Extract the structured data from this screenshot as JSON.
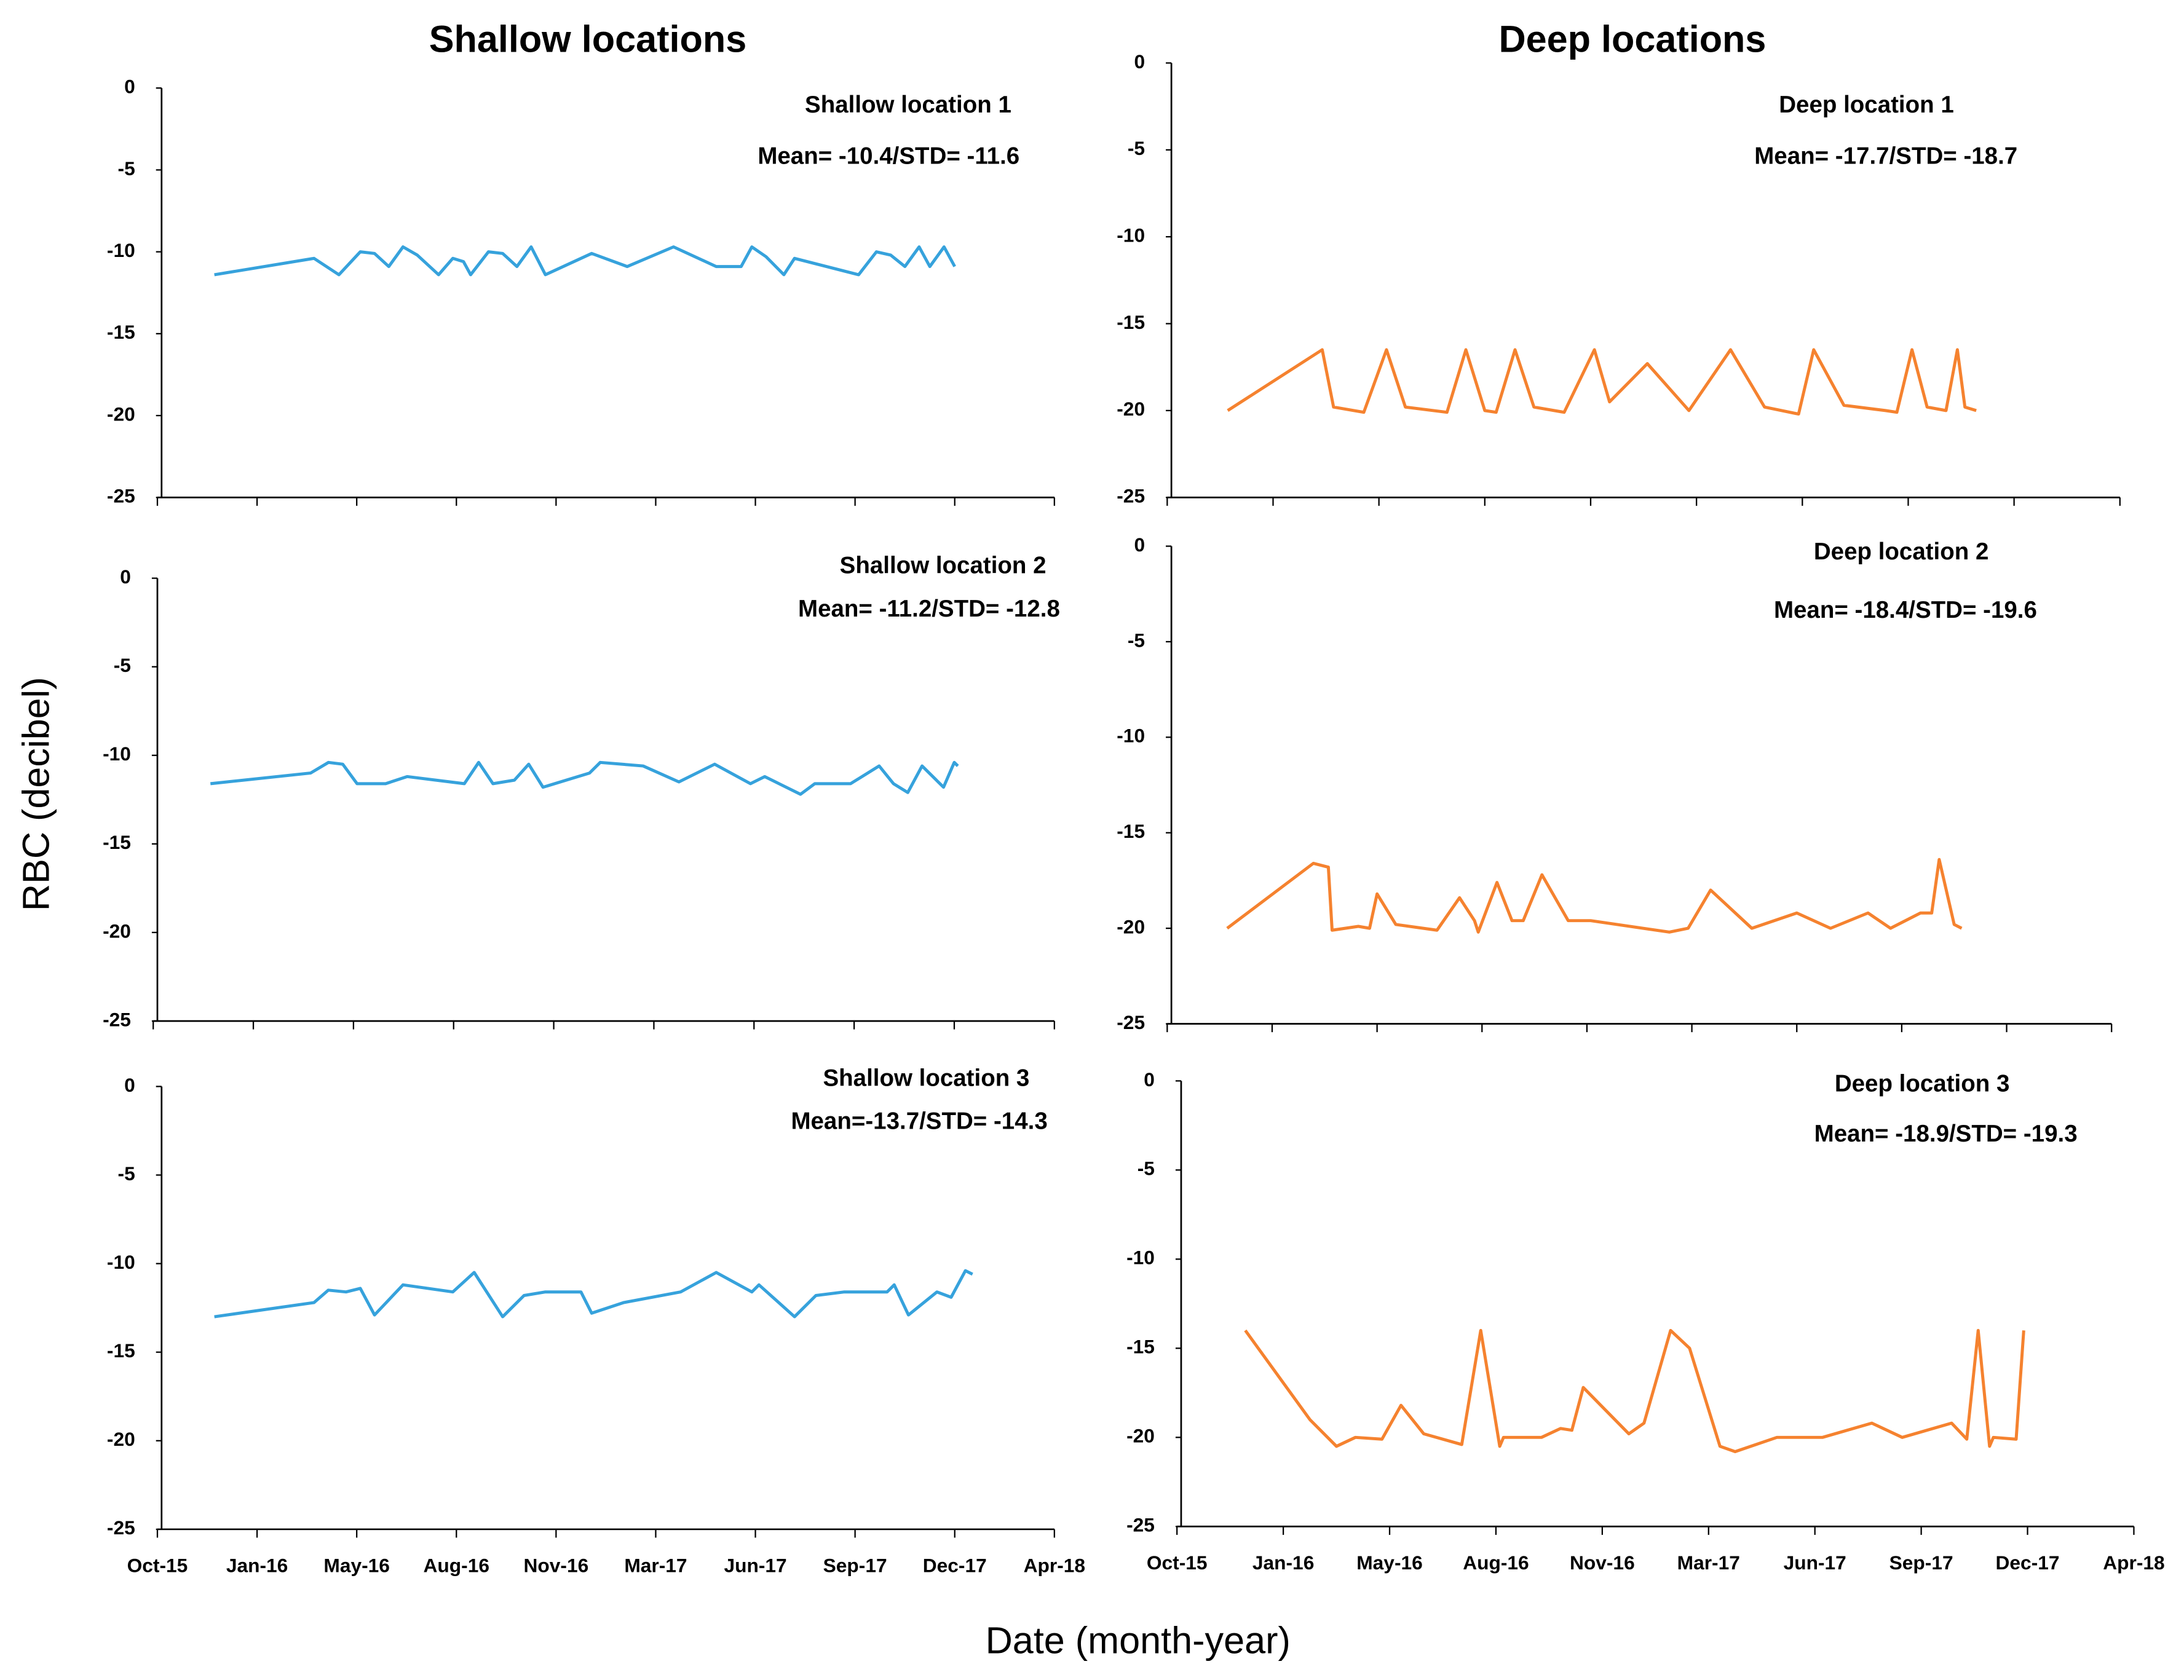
{
  "figure": {
    "column_titles": [
      "Shallow locations",
      "Deep locations"
    ],
    "ylabel": "RBC (decibel)",
    "xlabel": "Date (month-year)"
  },
  "chart_data": [
    {
      "type": "line",
      "title": "Shallow location 1",
      "annotation": "Mean= -10.4/STD= -11.6",
      "show_xtick_labels": false,
      "xlim": [
        2015.75,
        2018.27
      ],
      "ylim": [
        -25,
        0
      ],
      "yticks": [
        0,
        -5,
        -10,
        -15,
        -20,
        -25
      ],
      "xticks": [
        {
          "value": 2015.75,
          "label": "Oct-15"
        },
        {
          "value": 2016.03,
          "label": "Jan-16"
        },
        {
          "value": 2016.31,
          "label": "May-16"
        },
        {
          "value": 2016.59,
          "label": "Aug-16"
        },
        {
          "value": 2016.87,
          "label": "Nov-16"
        },
        {
          "value": 2017.15,
          "label": "Mar-17"
        },
        {
          "value": 2017.43,
          "label": "Jun-17"
        },
        {
          "value": 2017.71,
          "label": "Sep-17"
        },
        {
          "value": 2017.99,
          "label": "Dec-17"
        },
        {
          "value": 2018.27,
          "label": "Apr-18"
        }
      ],
      "x": [
        2015.91,
        2016.19,
        2016.26,
        2016.32,
        2016.36,
        2016.4,
        2016.44,
        2016.48,
        2016.54,
        2016.58,
        2016.61,
        2016.63,
        2016.68,
        2016.72,
        2016.76,
        2016.8,
        2016.84,
        2016.97,
        2017.07,
        2017.2,
        2017.32,
        2017.39,
        2017.42,
        2017.46,
        2017.51,
        2017.54,
        2017.72,
        2017.77,
        2017.81,
        2017.85,
        2017.89,
        2017.92,
        2017.96,
        2017.99
      ],
      "series": [
        {
          "color": "#36a2dc",
          "values": [
            -11.4,
            -10.4,
            -11.4,
            -10.0,
            -10.1,
            -10.9,
            -9.7,
            -10.2,
            -11.4,
            -10.4,
            -10.6,
            -11.4,
            -10.0,
            -10.1,
            -10.9,
            -9.7,
            -11.4,
            -10.1,
            -10.9,
            -9.7,
            -10.9,
            -10.9,
            -9.7,
            -10.3,
            -11.4,
            -10.4,
            -11.4,
            -10.0,
            -10.2,
            -10.9,
            -9.7,
            -10.9,
            -9.7,
            -10.9
          ]
        }
      ]
    },
    {
      "type": "line",
      "title": "Deep location 1",
      "annotation": "Mean= -17.7/STD= -18.7",
      "show_xtick_labels": false,
      "xlim": [
        2015.75,
        2018.27
      ],
      "ylim": [
        -25,
        0
      ],
      "yticks": [
        0,
        -5,
        -10,
        -15,
        -20,
        -25
      ],
      "xticks": [
        {
          "value": 2015.75,
          "label": "Oct-15"
        },
        {
          "value": 2016.03,
          "label": "Jan-16"
        },
        {
          "value": 2016.31,
          "label": "May-16"
        },
        {
          "value": 2016.59,
          "label": "Aug-16"
        },
        {
          "value": 2016.87,
          "label": "Nov-16"
        },
        {
          "value": 2017.15,
          "label": "Mar-17"
        },
        {
          "value": 2017.43,
          "label": "Jun-17"
        },
        {
          "value": 2017.71,
          "label": "Sep-17"
        },
        {
          "value": 2017.99,
          "label": "Dec-17"
        },
        {
          "value": 2018.27,
          "label": "Apr-18"
        }
      ],
      "x": [
        2015.91,
        2016.16,
        2016.19,
        2016.27,
        2016.33,
        2016.38,
        2016.49,
        2016.54,
        2016.59,
        2016.62,
        2016.67,
        2016.72,
        2016.8,
        2016.88,
        2016.92,
        2017.02,
        2017.13,
        2017.24,
        2017.33,
        2017.42,
        2017.46,
        2017.54,
        2017.65,
        2017.68,
        2017.72,
        2017.76,
        2017.81,
        2017.84,
        2017.86,
        2017.89
      ],
      "series": [
        {
          "color": "#f5822f",
          "values": [
            -20.0,
            -16.5,
            -19.8,
            -20.1,
            -16.5,
            -19.8,
            -20.1,
            -16.5,
            -20.0,
            -20.1,
            -16.5,
            -19.8,
            -20.1,
            -16.5,
            -19.5,
            -17.3,
            -20.0,
            -16.5,
            -19.8,
            -20.2,
            -16.5,
            -19.7,
            -20.0,
            -20.1,
            -16.5,
            -19.8,
            -20.0,
            -16.5,
            -19.8,
            -20.0
          ]
        }
      ]
    },
    {
      "type": "line",
      "title": "Shallow location 2",
      "annotation": "Mean= -11.2/STD= -12.8",
      "show_xtick_labels": false,
      "xlim": [
        2015.75,
        2018.27
      ],
      "ylim": [
        -25,
        0
      ],
      "yticks": [
        0,
        -5,
        -10,
        -15,
        -20,
        -25
      ],
      "xticks": [
        {
          "value": 2015.75,
          "label": "Oct-15"
        },
        {
          "value": 2016.03,
          "label": "Jan-16"
        },
        {
          "value": 2016.31,
          "label": "May-16"
        },
        {
          "value": 2016.59,
          "label": "Aug-16"
        },
        {
          "value": 2016.87,
          "label": "Nov-16"
        },
        {
          "value": 2017.15,
          "label": "Mar-17"
        },
        {
          "value": 2017.43,
          "label": "Jun-17"
        },
        {
          "value": 2017.71,
          "label": "Sep-17"
        },
        {
          "value": 2017.99,
          "label": "Dec-17"
        },
        {
          "value": 2018.27,
          "label": "Apr-18"
        }
      ],
      "x": [
        2015.91,
        2016.19,
        2016.24,
        2016.28,
        2016.32,
        2016.4,
        2016.46,
        2016.62,
        2016.66,
        2016.7,
        2016.76,
        2016.8,
        2016.84,
        2016.97,
        2017.0,
        2017.12,
        2017.22,
        2017.32,
        2017.42,
        2017.46,
        2017.56,
        2017.6,
        2017.7,
        2017.78,
        2017.82,
        2017.86,
        2017.9,
        2017.96,
        2017.99,
        2018.0
      ],
      "series": [
        {
          "color": "#36a2dc",
          "values": [
            -11.6,
            -11.0,
            -10.4,
            -10.5,
            -11.6,
            -11.6,
            -11.2,
            -11.6,
            -10.4,
            -11.6,
            -11.4,
            -10.5,
            -11.8,
            -11.0,
            -10.4,
            -10.6,
            -11.5,
            -10.5,
            -11.6,
            -11.2,
            -12.2,
            -11.6,
            -11.6,
            -10.6,
            -11.6,
            -12.1,
            -10.6,
            -11.8,
            -10.4,
            -10.6
          ]
        }
      ]
    },
    {
      "type": "line",
      "title": "Deep location 2",
      "annotation": "Mean= -18.4/STD= -19.6",
      "show_xtick_labels": false,
      "xlim": [
        2015.75,
        2018.27
      ],
      "ylim": [
        -25,
        0
      ],
      "yticks": [
        0,
        -5,
        -10,
        -15,
        -20,
        -25
      ],
      "xticks": [
        {
          "value": 2015.75,
          "label": "Oct-15"
        },
        {
          "value": 2016.03,
          "label": "Jan-16"
        },
        {
          "value": 2016.31,
          "label": "May-16"
        },
        {
          "value": 2016.59,
          "label": "Aug-16"
        },
        {
          "value": 2016.87,
          "label": "Nov-16"
        },
        {
          "value": 2017.15,
          "label": "Mar-17"
        },
        {
          "value": 2017.43,
          "label": "Jun-17"
        },
        {
          "value": 2017.71,
          "label": "Sep-17"
        },
        {
          "value": 2017.99,
          "label": "Dec-17"
        },
        {
          "value": 2018.27,
          "label": "Apr-18"
        }
      ],
      "x": [
        2015.91,
        2016.14,
        2016.18,
        2016.19,
        2016.26,
        2016.29,
        2016.31,
        2016.36,
        2016.47,
        2016.53,
        2016.57,
        2016.58,
        2016.63,
        2016.67,
        2016.7,
        2016.75,
        2016.82,
        2016.88,
        2017.09,
        2017.14,
        2017.2,
        2017.31,
        2017.43,
        2017.52,
        2017.62,
        2017.68,
        2017.76,
        2017.79,
        2017.81,
        2017.85,
        2017.87
      ],
      "series": [
        {
          "color": "#f5822f",
          "values": [
            -20.0,
            -16.6,
            -16.8,
            -20.1,
            -19.9,
            -20.0,
            -18.2,
            -19.8,
            -20.1,
            -18.4,
            -19.6,
            -20.2,
            -17.6,
            -19.6,
            -19.6,
            -17.2,
            -19.6,
            -19.6,
            -20.2,
            -20.0,
            -18.0,
            -20.0,
            -19.2,
            -20.0,
            -19.2,
            -20.0,
            -19.2,
            -19.2,
            -16.4,
            -19.8,
            -20.0
          ]
        }
      ]
    },
    {
      "type": "line",
      "title": "Shallow location 3",
      "annotation": "Mean=-13.7/STD= -14.3",
      "show_xtick_labels": true,
      "xlim": [
        2015.75,
        2018.27
      ],
      "ylim": [
        -25,
        0
      ],
      "yticks": [
        0,
        -5,
        -10,
        -15,
        -20,
        -25
      ],
      "xticks": [
        {
          "value": 2015.75,
          "label": "Oct-15"
        },
        {
          "value": 2016.03,
          "label": "Jan-16"
        },
        {
          "value": 2016.31,
          "label": "May-16"
        },
        {
          "value": 2016.59,
          "label": "Aug-16"
        },
        {
          "value": 2016.87,
          "label": "Nov-16"
        },
        {
          "value": 2017.15,
          "label": "Mar-17"
        },
        {
          "value": 2017.43,
          "label": "Jun-17"
        },
        {
          "value": 2017.71,
          "label": "Sep-17"
        },
        {
          "value": 2017.99,
          "label": "Dec-17"
        },
        {
          "value": 2018.27,
          "label": "Apr-18"
        }
      ],
      "x": [
        2015.91,
        2016.19,
        2016.23,
        2016.28,
        2016.32,
        2016.36,
        2016.44,
        2016.58,
        2016.64,
        2016.72,
        2016.78,
        2016.84,
        2016.94,
        2016.97,
        2017.06,
        2017.22,
        2017.32,
        2017.42,
        2017.44,
        2017.54,
        2017.6,
        2017.68,
        2017.8,
        2017.82,
        2017.86,
        2017.94,
        2017.98,
        2018.02,
        2018.04
      ],
      "series": [
        {
          "color": "#36a2dc",
          "values": [
            -13.0,
            -12.2,
            -11.5,
            -11.6,
            -11.4,
            -12.9,
            -11.2,
            -11.6,
            -10.5,
            -13.0,
            -11.8,
            -11.6,
            -11.6,
            -12.8,
            -12.2,
            -11.6,
            -10.5,
            -11.6,
            -11.2,
            -13.0,
            -11.8,
            -11.6,
            -11.6,
            -11.2,
            -12.9,
            -11.6,
            -11.9,
            -10.4,
            -10.6
          ]
        }
      ]
    },
    {
      "type": "line",
      "title": "Deep location 3",
      "annotation": "Mean= -18.9/STD= -19.3",
      "show_xtick_labels": true,
      "xlim": [
        2015.75,
        2018.27
      ],
      "ylim": [
        -25,
        0
      ],
      "yticks": [
        0,
        -5,
        -10,
        -15,
        -20,
        -25
      ],
      "xticks": [
        {
          "value": 2015.75,
          "label": "Oct-15"
        },
        {
          "value": 2016.03,
          "label": "Jan-16"
        },
        {
          "value": 2016.31,
          "label": "May-16"
        },
        {
          "value": 2016.59,
          "label": "Aug-16"
        },
        {
          "value": 2016.87,
          "label": "Nov-16"
        },
        {
          "value": 2017.15,
          "label": "Mar-17"
        },
        {
          "value": 2017.43,
          "label": "Jun-17"
        },
        {
          "value": 2017.71,
          "label": "Sep-17"
        },
        {
          "value": 2017.99,
          "label": "Dec-17"
        },
        {
          "value": 2018.27,
          "label": "Apr-18"
        }
      ],
      "x": [
        2015.93,
        2016.1,
        2016.17,
        2016.22,
        2016.29,
        2016.34,
        2016.4,
        2016.5,
        2016.55,
        2016.6,
        2016.61,
        2016.71,
        2016.76,
        2016.79,
        2016.82,
        2016.94,
        2016.98,
        2017.05,
        2017.1,
        2017.18,
        2017.22,
        2017.33,
        2017.45,
        2017.58,
        2017.66,
        2017.79,
        2017.83,
        2017.86,
        2017.89,
        2017.9,
        2017.96,
        2017.98
      ],
      "series": [
        {
          "color": "#f5822f",
          "values": [
            -14.0,
            -19.0,
            -20.5,
            -20.0,
            -20.1,
            -18.2,
            -19.8,
            -20.4,
            -14.0,
            -20.5,
            -20.0,
            -20.0,
            -19.5,
            -19.6,
            -17.2,
            -19.8,
            -19.2,
            -14.0,
            -15.0,
            -20.5,
            -20.8,
            -20.0,
            -20.0,
            -19.2,
            -20.0,
            -19.2,
            -20.1,
            -14.0,
            -20.5,
            -20.0,
            -20.1,
            -14.0
          ]
        }
      ]
    }
  ]
}
